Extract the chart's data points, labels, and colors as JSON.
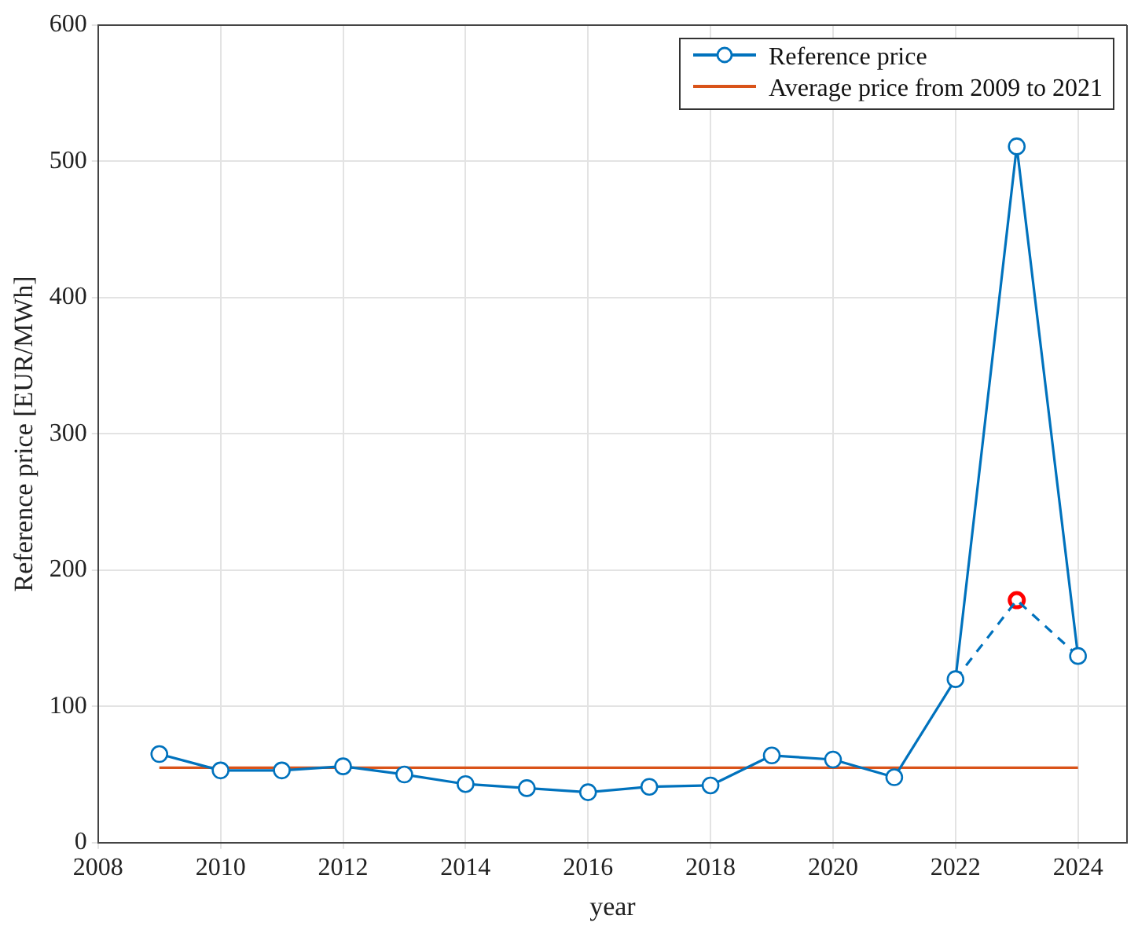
{
  "chart_data": {
    "type": "line",
    "xlabel": "year",
    "ylabel": "Reference price [EUR/MWh]",
    "xlim": [
      2008,
      2024.8
    ],
    "xticks": [
      2008,
      2010,
      2012,
      2014,
      2016,
      2018,
      2020,
      2022,
      2024
    ],
    "ylim": [
      0,
      600
    ],
    "yticks": [
      0,
      100,
      200,
      300,
      400,
      500,
      600
    ],
    "grid": true,
    "legend": "top right",
    "series": [
      {
        "name": "Reference price",
        "color": "#0072bd",
        "marker": "circle",
        "line_style": "solid",
        "x": [
          2009,
          2010,
          2011,
          2012,
          2013,
          2014,
          2015,
          2016,
          2017,
          2018,
          2019,
          2020,
          2021,
          2022,
          2023,
          2024
        ],
        "values": [
          65,
          53,
          53,
          56,
          50,
          43,
          40,
          37,
          41,
          42,
          64,
          61,
          48,
          120,
          511,
          137
        ]
      },
      {
        "name": "Average price from 2009 to 2021",
        "color": "#d95319",
        "marker": "none",
        "line_style": "solid",
        "x": [
          2009,
          2024
        ],
        "values": [
          55,
          55
        ]
      },
      {
        "color": "#0072bd",
        "marker": "none",
        "line_style": "dashed",
        "x": [
          2022,
          2023,
          2024
        ],
        "values": [
          120,
          178,
          137
        ]
      },
      {
        "type": "scatter",
        "color": "#ff0000",
        "marker": "circle",
        "x": [
          2023
        ],
        "values": [
          178
        ]
      }
    ]
  }
}
